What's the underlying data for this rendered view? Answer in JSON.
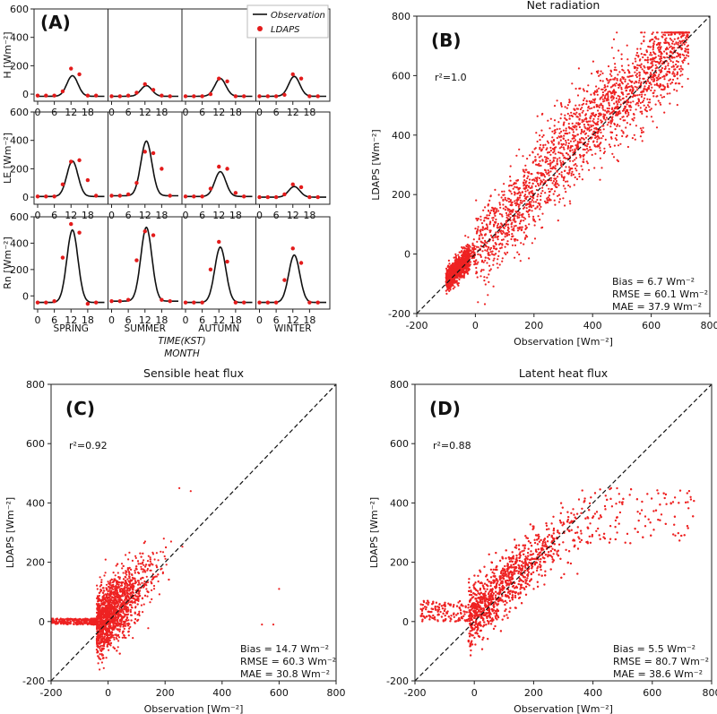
{
  "chart_data": [
    {
      "id": "A",
      "type": "line",
      "panel_label": "(A)",
      "legend": {
        "observation": "Observation",
        "ldaps": "LDAPS",
        "placement": "top-right"
      },
      "seasons": [
        "SPRING",
        "SUMMER",
        "AUTUMN",
        "WINTER"
      ],
      "xlabel": "TIME(KST)",
      "xlabel2": "MONTH",
      "x_ticks": [
        0,
        6,
        12,
        18
      ],
      "rows": [
        {
          "name": "H",
          "ylabel": "H [Wm⁻²]",
          "ylim": [
            -50,
            600
          ],
          "y_ticks": [
            0,
            200,
            400,
            600
          ],
          "observation_peak": [
            130,
            60,
            110,
            125
          ],
          "observation_base": [
            -15,
            -15,
            -15,
            -15
          ],
          "ldaps_points": [
            [
              [
                0,
                -10
              ],
              [
                3,
                -10
              ],
              [
                6,
                -10
              ],
              [
                9,
                20
              ],
              [
                12,
                180
              ],
              [
                15,
                140
              ],
              [
                18,
                -10
              ],
              [
                21,
                -10
              ]
            ],
            [
              [
                0,
                -15
              ],
              [
                3,
                -15
              ],
              [
                6,
                -10
              ],
              [
                9,
                10
              ],
              [
                12,
                70
              ],
              [
                15,
                30
              ],
              [
                18,
                -10
              ],
              [
                21,
                -15
              ]
            ],
            [
              [
                0,
                -15
              ],
              [
                3,
                -15
              ],
              [
                6,
                -15
              ],
              [
                9,
                0
              ],
              [
                12,
                110
              ],
              [
                15,
                90
              ],
              [
                18,
                -15
              ],
              [
                21,
                -15
              ]
            ],
            [
              [
                0,
                -15
              ],
              [
                3,
                -15
              ],
              [
                6,
                -15
              ],
              [
                9,
                -5
              ],
              [
                12,
                140
              ],
              [
                15,
                110
              ],
              [
                18,
                -15
              ],
              [
                21,
                -15
              ]
            ]
          ]
        },
        {
          "name": "LE",
          "ylabel": "LE [Wm⁻²]",
          "ylim": [
            -50,
            600
          ],
          "y_ticks": [
            0,
            200,
            400,
            600
          ],
          "observation_peak": [
            255,
            395,
            180,
            75
          ],
          "observation_base": [
            5,
            10,
            5,
            0
          ],
          "ldaps_points": [
            [
              [
                0,
                5
              ],
              [
                3,
                5
              ],
              [
                6,
                5
              ],
              [
                9,
                90
              ],
              [
                12,
                250
              ],
              [
                15,
                260
              ],
              [
                18,
                120
              ],
              [
                21,
                10
              ]
            ],
            [
              [
                0,
                10
              ],
              [
                3,
                10
              ],
              [
                6,
                20
              ],
              [
                9,
                100
              ],
              [
                12,
                320
              ],
              [
                15,
                310
              ],
              [
                18,
                200
              ],
              [
                21,
                10
              ]
            ],
            [
              [
                0,
                5
              ],
              [
                3,
                5
              ],
              [
                6,
                5
              ],
              [
                9,
                60
              ],
              [
                12,
                215
              ],
              [
                15,
                200
              ],
              [
                18,
                30
              ],
              [
                21,
                5
              ]
            ],
            [
              [
                0,
                0
              ],
              [
                3,
                0
              ],
              [
                6,
                0
              ],
              [
                9,
                20
              ],
              [
                12,
                90
              ],
              [
                15,
                70
              ],
              [
                18,
                0
              ],
              [
                21,
                0
              ]
            ]
          ]
        },
        {
          "name": "Rn",
          "ylabel": "Rn [Wm⁻²]",
          "ylim": [
            -100,
            600
          ],
          "y_ticks": [
            0,
            200,
            400,
            600
          ],
          "observation_peak": [
            500,
            520,
            370,
            310
          ],
          "observation_base": [
            -50,
            -40,
            -50,
            -50
          ],
          "ldaps_points": [
            [
              [
                0,
                -50
              ],
              [
                3,
                -50
              ],
              [
                6,
                -40
              ],
              [
                9,
                290
              ],
              [
                12,
                545
              ],
              [
                15,
                480
              ],
              [
                18,
                -60
              ],
              [
                21,
                -50
              ]
            ],
            [
              [
                0,
                -40
              ],
              [
                3,
                -40
              ],
              [
                6,
                -30
              ],
              [
                9,
                270
              ],
              [
                12,
                490
              ],
              [
                15,
                460
              ],
              [
                18,
                -30
              ],
              [
                21,
                -40
              ]
            ],
            [
              [
                0,
                -50
              ],
              [
                3,
                -50
              ],
              [
                6,
                -50
              ],
              [
                9,
                200
              ],
              [
                12,
                410
              ],
              [
                15,
                260
              ],
              [
                18,
                -50
              ],
              [
                21,
                -50
              ]
            ],
            [
              [
                0,
                -50
              ],
              [
                3,
                -50
              ],
              [
                6,
                -50
              ],
              [
                9,
                120
              ],
              [
                12,
                360
              ],
              [
                15,
                250
              ],
              [
                18,
                -50
              ],
              [
                21,
                -50
              ]
            ]
          ]
        }
      ]
    },
    {
      "id": "B",
      "type": "scatter",
      "panel_label": "(B)",
      "title": "Net radiation",
      "xlabel": "Observation  [Wm⁻²]",
      "ylabel": "LDAPS  [Wm⁻²]",
      "xlim": [
        -200,
        800
      ],
      "ylim": [
        -200,
        800
      ],
      "ticks": [
        -200,
        0,
        200,
        400,
        600,
        800
      ],
      "r2_label": "r²=1.0",
      "stats": {
        "bias": "Bias = 6.7 Wm⁻²",
        "rmse": "RMSE = 60.1 Wm⁻²",
        "mae": "MAE = 37.9 Wm⁻²"
      },
      "point_color": "#ee2222"
    },
    {
      "id": "C",
      "type": "scatter",
      "panel_label": "(C)",
      "title": "Sensible heat flux",
      "xlabel": "Observation  [Wm⁻²]",
      "ylabel": "LDAPS  [Wm⁻²]",
      "xlim": [
        -200,
        800
      ],
      "ylim": [
        -200,
        800
      ],
      "ticks": [
        -200,
        0,
        200,
        400,
        600,
        800
      ],
      "r2_label": "r²=0.92",
      "stats": {
        "bias": "Bias = 14.7 Wm⁻²",
        "rmse": "RMSE = 60.3 Wm⁻²",
        "mae": "MAE = 30.8 Wm⁻²"
      },
      "point_color": "#ee2222"
    },
    {
      "id": "D",
      "type": "scatter",
      "panel_label": "(D)",
      "title": "Latent heat flux",
      "xlabel": "Observation  [Wm⁻²]",
      "ylabel": "LDAPS  [Wm⁻²]",
      "xlim": [
        -200,
        800
      ],
      "ylim": [
        -200,
        800
      ],
      "ticks": [
        -200,
        0,
        200,
        400,
        600,
        800
      ],
      "r2_label": "r²=0.88",
      "stats": {
        "bias": "Bias = 5.5 Wm⁻²",
        "rmse": "RMSE = 80.7 Wm⁻²",
        "mae": "MAE = 38.6 Wm⁻²"
      },
      "point_color": "#ee2222"
    }
  ]
}
